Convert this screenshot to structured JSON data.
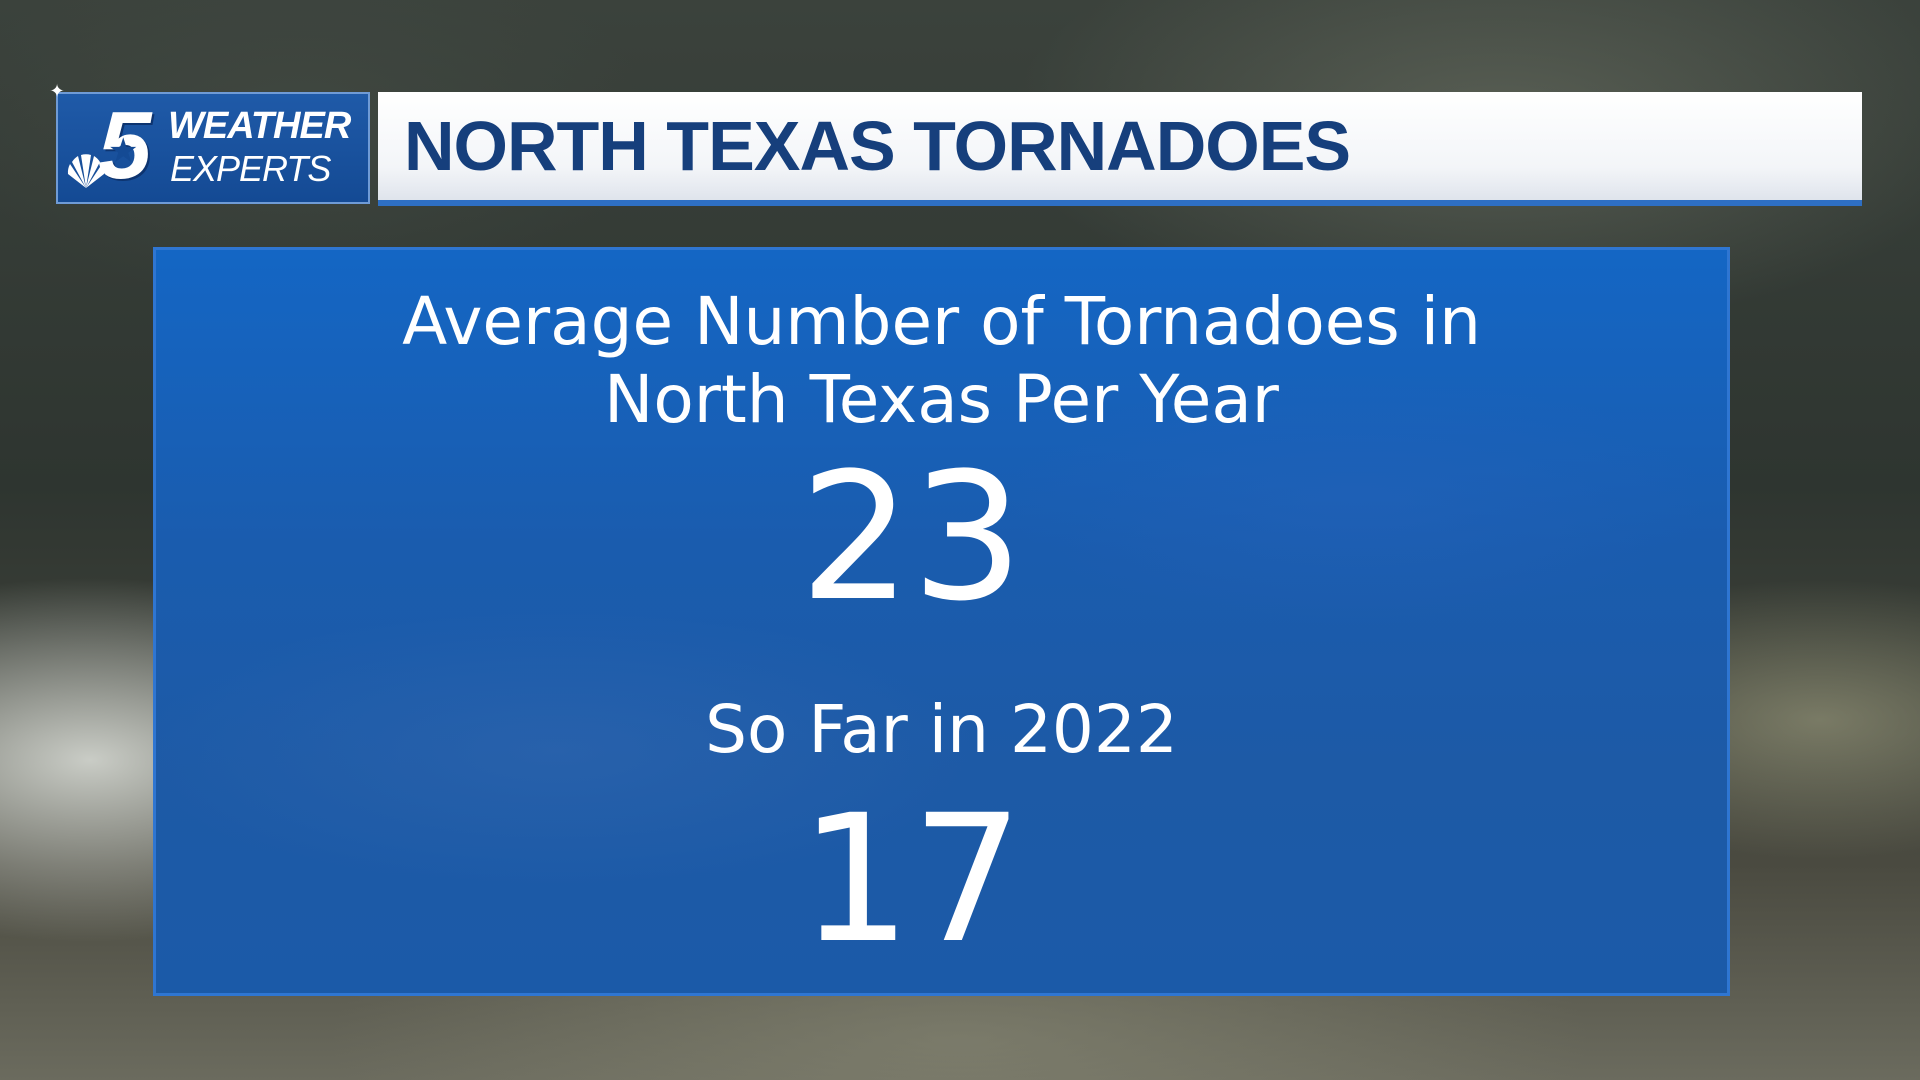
{
  "header": {
    "logo": {
      "number": "5",
      "line1": "WEATHER",
      "line2": "EXPERTS"
    },
    "title": "NORTH TEXAS TORNADOES"
  },
  "panel": {
    "average_label_line1": "Average Number of Tornadoes in",
    "average_label_line2": "North Texas Per Year",
    "average_value": "23",
    "ytd_label": "So Far in 2022",
    "ytd_value": "17"
  },
  "colors": {
    "brand_blue": "#144a94",
    "panel_blue": "#1a5cae",
    "title_text": "#163f7c",
    "accent_border": "#2f76d2"
  },
  "icons": [
    "peacock-icon",
    "star-icon",
    "sparkle-icon"
  ]
}
